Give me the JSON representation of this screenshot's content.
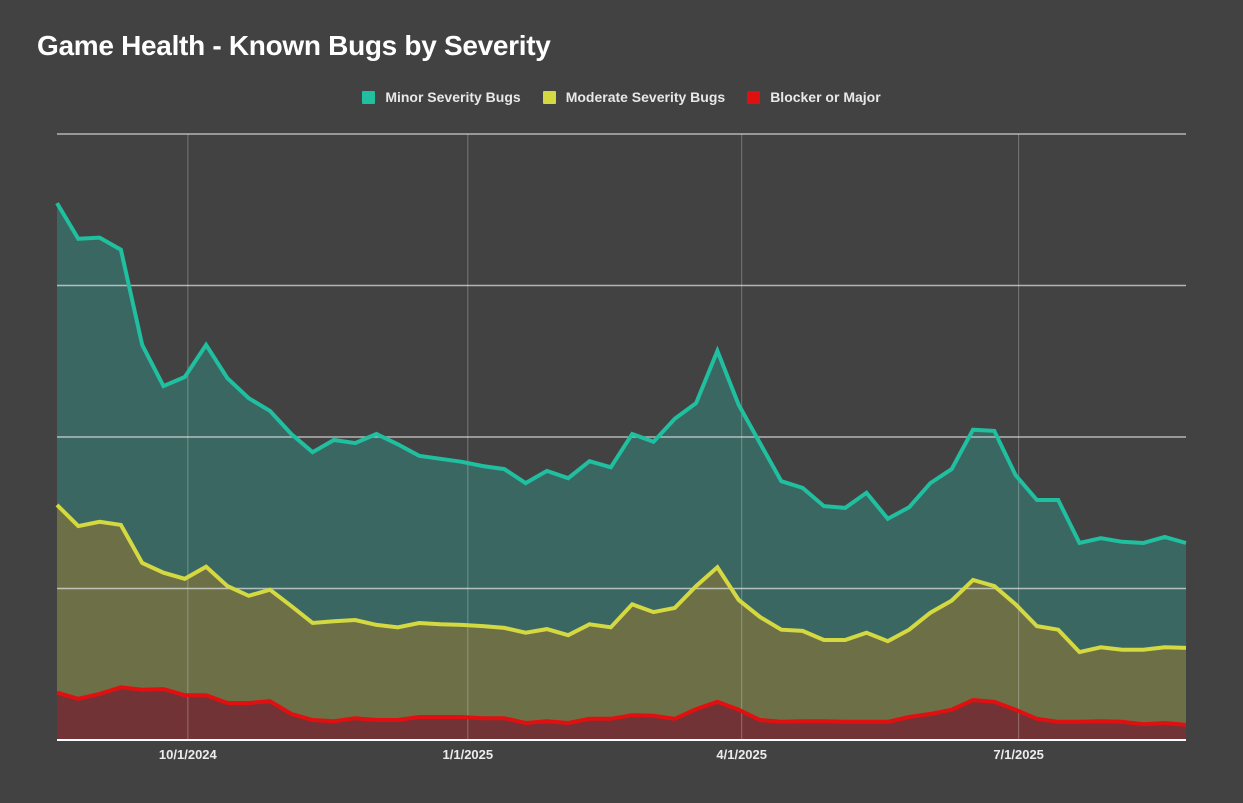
{
  "chart_data": {
    "type": "area",
    "title": "Game Health - Known Bugs by Severity",
    "xlabel": "",
    "ylabel": "",
    "legend_position": "top-center",
    "grid": true,
    "ylim": [
      0,
      100
    ],
    "y_gridlines": [
      0,
      25,
      50,
      75,
      100
    ],
    "y_tick_labels_shown": false,
    "x_tick_labels": [
      "10/1/2024",
      "1/1/2025",
      "4/1/2025",
      "7/1/2025"
    ],
    "x_range": [
      "8/19/2024",
      "9/1/2025"
    ],
    "x_interval": "weekly",
    "x": [
      "8/19/2024",
      "8/26/2024",
      "9/2/2024",
      "9/9/2024",
      "9/16/2024",
      "9/23/2024",
      "9/30/2024",
      "10/7/2024",
      "10/14/2024",
      "10/21/2024",
      "10/28/2024",
      "11/4/2024",
      "11/11/2024",
      "11/18/2024",
      "11/25/2024",
      "12/2/2024",
      "12/9/2024",
      "12/16/2024",
      "12/23/2024",
      "12/30/2024",
      "1/6/2025",
      "1/13/2025",
      "1/20/2025",
      "1/27/2025",
      "2/3/2025",
      "2/10/2025",
      "2/17/2025",
      "2/24/2025",
      "3/3/2025",
      "3/10/2025",
      "3/17/2025",
      "3/24/2025",
      "3/31/2025",
      "4/7/2025",
      "4/14/2025",
      "4/21/2025",
      "4/28/2025",
      "5/5/2025",
      "5/12/2025",
      "5/19/2025",
      "5/26/2025",
      "6/2/2025",
      "6/9/2025",
      "6/16/2025",
      "6/23/2025",
      "6/30/2025",
      "7/7/2025",
      "7/14/2025",
      "7/21/2025",
      "7/28/2025",
      "8/4/2025",
      "8/11/2025",
      "8/18/2025",
      "8/25/2025"
    ],
    "series": [
      {
        "name": "Minor Severity Bugs",
        "color": "#1fbf9f",
        "fill": "#3b6762",
        "values": [
          88.6,
          82.7,
          82.9,
          80.9,
          65.2,
          58.4,
          59.9,
          65.2,
          59.7,
          56.4,
          54.3,
          50.5,
          47.5,
          49.5,
          49.0,
          50.5,
          48.8,
          46.9,
          46.4,
          45.9,
          45.2,
          44.7,
          42.4,
          44.4,
          43.2,
          46.0,
          45.0,
          50.5,
          49.2,
          53.0,
          55.6,
          64.2,
          55.3,
          49.0,
          42.7,
          41.6,
          38.6,
          38.3,
          40.8,
          36.5,
          38.4,
          42.4,
          44.7,
          51.2,
          51.0,
          43.7,
          39.6,
          39.6,
          32.5,
          33.3,
          32.7,
          32.5,
          33.5,
          32.5
        ]
      },
      {
        "name": "Moderate Severity Bugs",
        "color": "#d4d941",
        "fill": "#6d7047",
        "values": [
          38.8,
          35.3,
          36.0,
          35.5,
          29.2,
          27.6,
          26.6,
          28.6,
          25.4,
          23.8,
          24.8,
          22.1,
          19.3,
          19.6,
          19.8,
          19.0,
          18.6,
          19.3,
          19.1,
          19.0,
          18.8,
          18.5,
          17.7,
          18.3,
          17.3,
          19.1,
          18.6,
          22.4,
          21.1,
          21.8,
          25.4,
          28.5,
          23.1,
          20.3,
          18.2,
          18.0,
          16.5,
          16.5,
          17.7,
          16.3,
          18.2,
          21.0,
          23.0,
          26.4,
          25.4,
          22.4,
          18.8,
          18.2,
          14.5,
          15.3,
          14.9,
          14.9,
          15.3,
          15.2
        ]
      },
      {
        "name": "Blocker or Major",
        "color": "#e01010",
        "fill": "#713335",
        "values": [
          7.8,
          6.8,
          7.6,
          8.7,
          8.3,
          8.4,
          7.4,
          7.4,
          6.1,
          6.1,
          6.4,
          4.3,
          3.3,
          3.1,
          3.6,
          3.3,
          3.3,
          3.8,
          3.8,
          3.8,
          3.6,
          3.6,
          2.8,
          3.1,
          2.8,
          3.5,
          3.5,
          4.1,
          4.0,
          3.5,
          5.1,
          6.3,
          5.0,
          3.3,
          3.0,
          3.1,
          3.1,
          3.0,
          3.0,
          3.0,
          3.8,
          4.3,
          5.0,
          6.6,
          6.3,
          5.0,
          3.5,
          3.0,
          3.0,
          3.1,
          3.0,
          2.6,
          2.8,
          2.5
        ]
      }
    ]
  }
}
